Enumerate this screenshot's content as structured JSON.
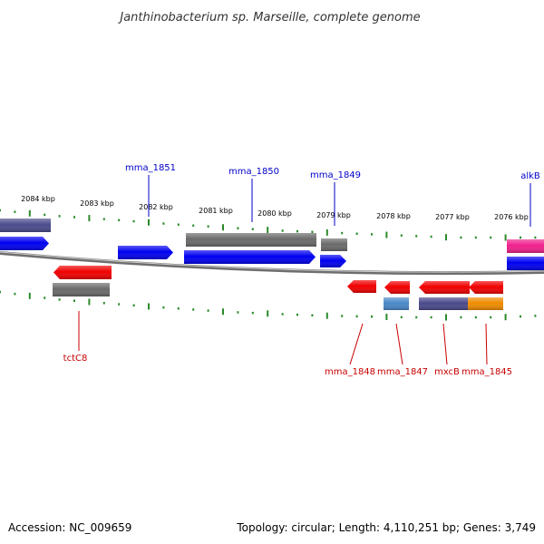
{
  "title": "Janthinobacterium sp. Marseille, complete genome",
  "footer": {
    "accession": "Accession: NC_009659",
    "topology": "Topology: circular; Length: 4,110,251 bp; Genes: 3,749"
  },
  "colors": {
    "backbone": "#8c8c8c",
    "tick": "#2a8a2a",
    "forward_label": "#0000c8",
    "reverse_label": "#c80000",
    "blue": "#0000f0",
    "red": "#f00000",
    "gray": "#6a6a6a",
    "slate": "#4a4a8c",
    "pink": "#f0208c",
    "steelblue": "#4a88c8",
    "orange": "#f08c00"
  },
  "kbp_ticks": [
    "2084 kbp",
    "2083 kbp",
    "2082 kbp",
    "2081 kbp",
    "2080 kbp",
    "2079 kbp",
    "2078 kbp",
    "2077 kbp",
    "2076 kbp"
  ],
  "forward_labels": [
    "mma_1851",
    "mma_1850",
    "mma_1849",
    "alkB"
  ],
  "reverse_labels": [
    "tctC8",
    "mma_1848",
    "mma_1847",
    "mxcB",
    "mma_1845"
  ]
}
